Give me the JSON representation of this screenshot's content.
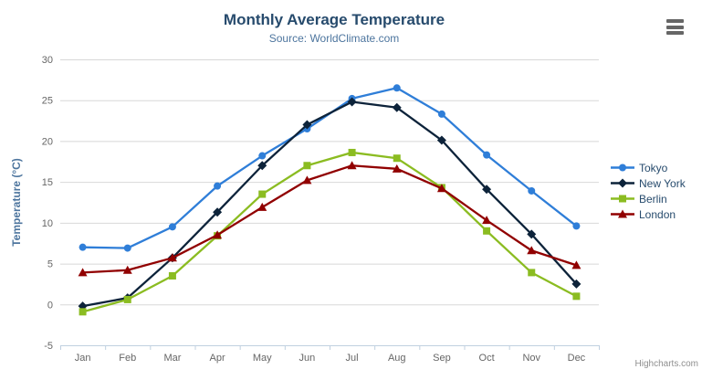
{
  "title": "Monthly Average Temperature",
  "subtitle": "Source: WorldClimate.com",
  "credits": "Highcharts.com",
  "colors": {
    "title": "#274b6d",
    "subtitle": "#4d759e",
    "grid_line": "#d8d8d8",
    "axis_line": "#c0d0e0",
    "tick_label": "#666666",
    "axis_title": "#4d759e",
    "legend_label": "#274b6d",
    "menu_icon": "#666666",
    "credits_text": "#8f8f8f"
  },
  "chart_data": {
    "type": "line",
    "title": "Monthly Average Temperature",
    "subtitle": "Source: WorldClimate.com",
    "categories": [
      "Jan",
      "Feb",
      "Mar",
      "Apr",
      "May",
      "Jun",
      "Jul",
      "Aug",
      "Sep",
      "Oct",
      "Nov",
      "Dec"
    ],
    "series": [
      {
        "name": "Tokyo",
        "color": "#2f7ed8",
        "marker": "circle",
        "values": [
          7.0,
          6.9,
          9.5,
          14.5,
          18.2,
          21.5,
          25.2,
          26.5,
          23.3,
          18.3,
          13.9,
          9.6
        ]
      },
      {
        "name": "New York",
        "color": "#0d233a",
        "marker": "diamond",
        "values": [
          -0.2,
          0.8,
          5.7,
          11.3,
          17.0,
          22.0,
          24.8,
          24.1,
          20.1,
          14.1,
          8.6,
          2.5
        ]
      },
      {
        "name": "Berlin",
        "color": "#8bbc21",
        "marker": "square",
        "values": [
          -0.9,
          0.6,
          3.5,
          8.4,
          13.5,
          17.0,
          18.6,
          17.9,
          14.3,
          9.0,
          3.9,
          1.0
        ]
      },
      {
        "name": "London",
        "color": "#910000",
        "marker": "triangle",
        "values": [
          3.9,
          4.2,
          5.7,
          8.5,
          11.9,
          15.2,
          17.0,
          16.6,
          14.2,
          10.3,
          6.6,
          4.8
        ]
      }
    ],
    "xlabel": "",
    "ylabel": "Temperature (°C)",
    "ylim": [
      -5,
      30
    ],
    "yticks": [
      -5,
      0,
      5,
      10,
      15,
      20,
      25,
      30
    ],
    "grid": true,
    "legend_position": "right"
  }
}
